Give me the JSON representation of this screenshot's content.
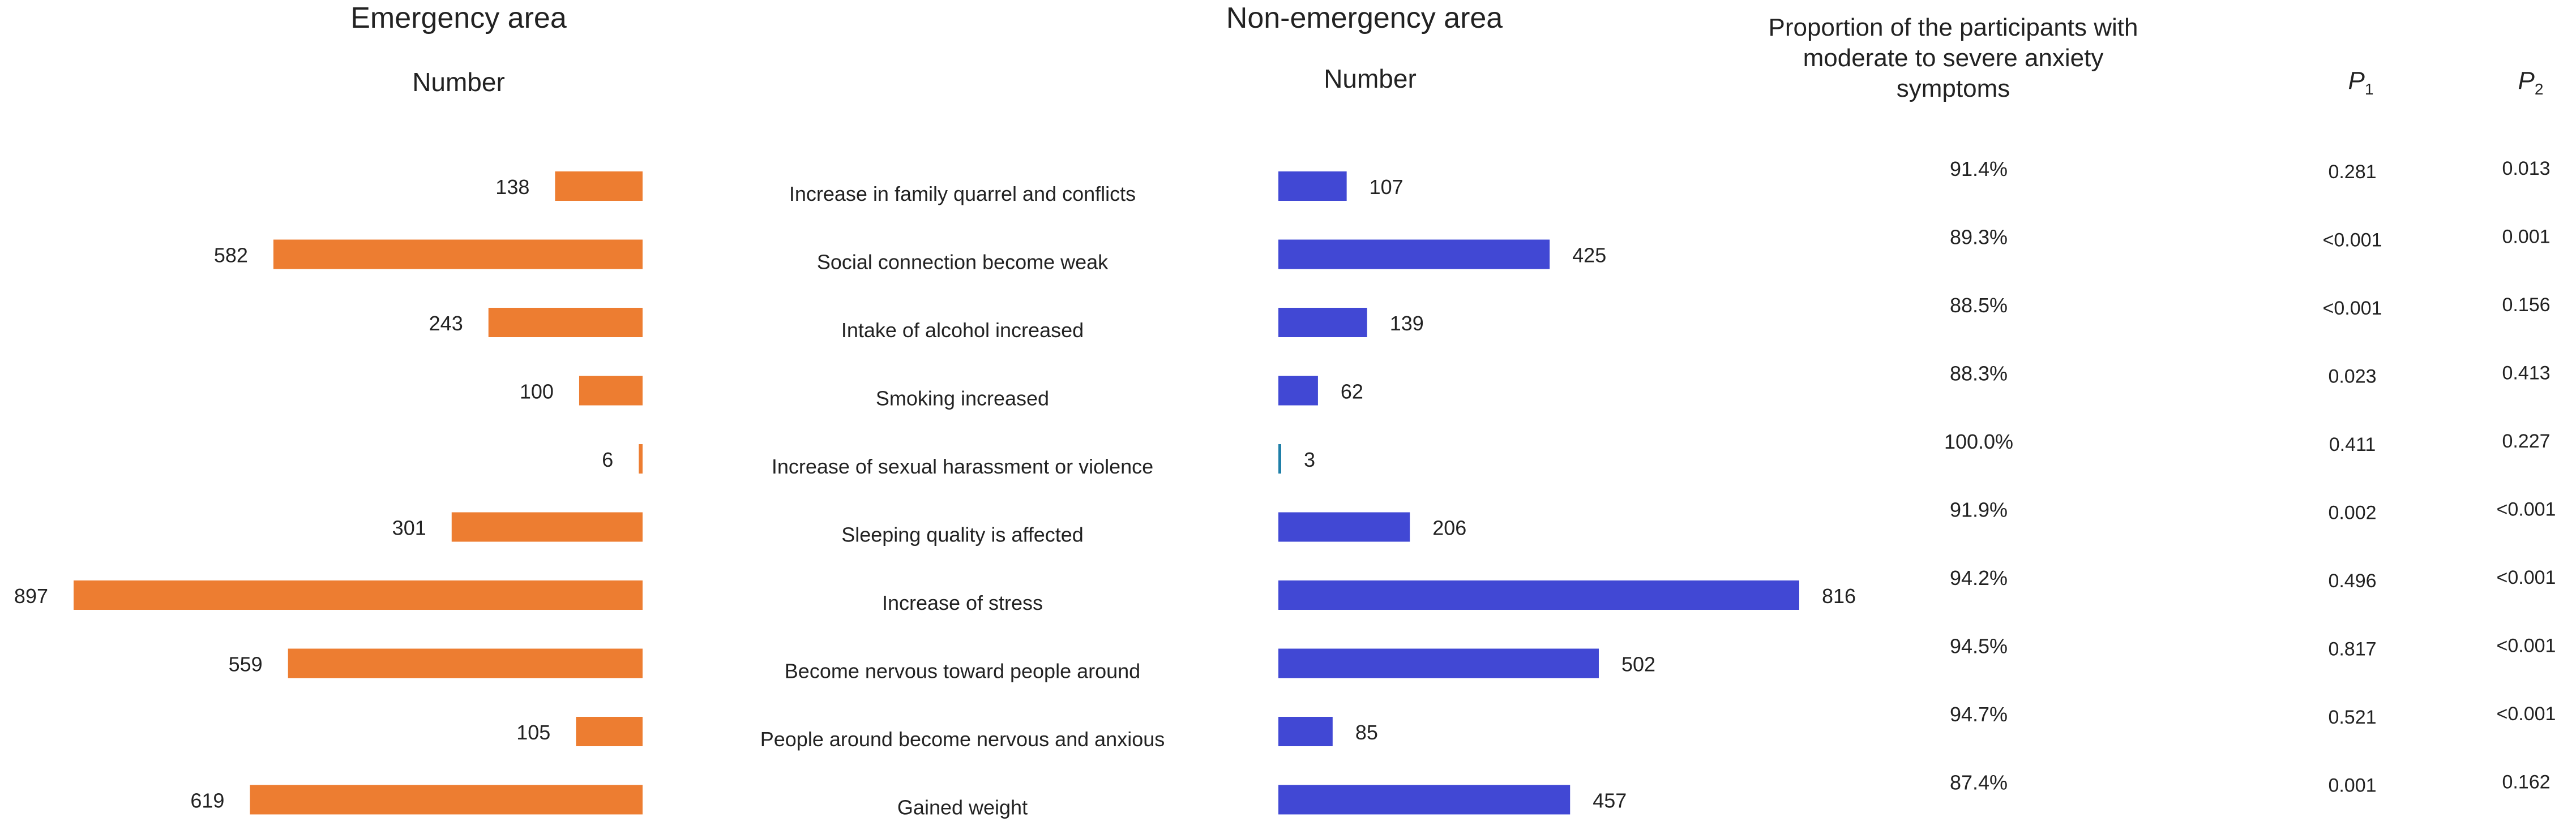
{
  "chart_data": {
    "type": "bar",
    "panels": [
      {
        "title": "Emergency area",
        "xlabel": "Number",
        "color": "#ED7D31"
      },
      {
        "title": "Non-emergency area",
        "xlabel": "Number",
        "color": "#4148D4"
      }
    ],
    "categories": [
      "Increase in family quarrel and conflicts",
      "Social connection become weak",
      "Intake of alcohol increased",
      "Smoking increased",
      "Increase of sexual harassment or violence",
      "Sleeping quality is affected",
      "Increase of stress",
      "Become nervous toward people around",
      "People around become nervous and anxious",
      "Gained weight"
    ],
    "series": [
      {
        "name": "Emergency area",
        "values": [
          138,
          582,
          243,
          100,
          6,
          301,
          897,
          559,
          105,
          619
        ]
      },
      {
        "name": "Non-emergency area",
        "values": [
          107,
          425,
          139,
          62,
          3,
          206,
          816,
          502,
          85,
          457
        ]
      }
    ],
    "proportion_header": "Proportion of the participants with moderate to severe anxiety symptoms",
    "proportion": [
      "91.4%",
      "89.3%",
      "88.5%",
      "88.3%",
      "100.0%",
      "91.9%",
      "94.2%",
      "94.5%",
      "94.7%",
      "87.4%"
    ],
    "p1_header": {
      "letter": "P",
      "sub": "1"
    },
    "p2_header": {
      "letter": "P",
      "sub": "2"
    },
    "p1": [
      "0.281",
      "<0.001",
      "<0.001",
      "0.023",
      "0.411",
      "0.002",
      "0.496",
      "0.817",
      "0.521",
      "0.001"
    ],
    "p2": [
      "0.013",
      "0.001",
      "0.156",
      "0.413",
      "0.227",
      "<0.001",
      "<0.001",
      "<0.001",
      "<0.001",
      "0.162"
    ],
    "special_bar_color": "#1F7FA8"
  }
}
